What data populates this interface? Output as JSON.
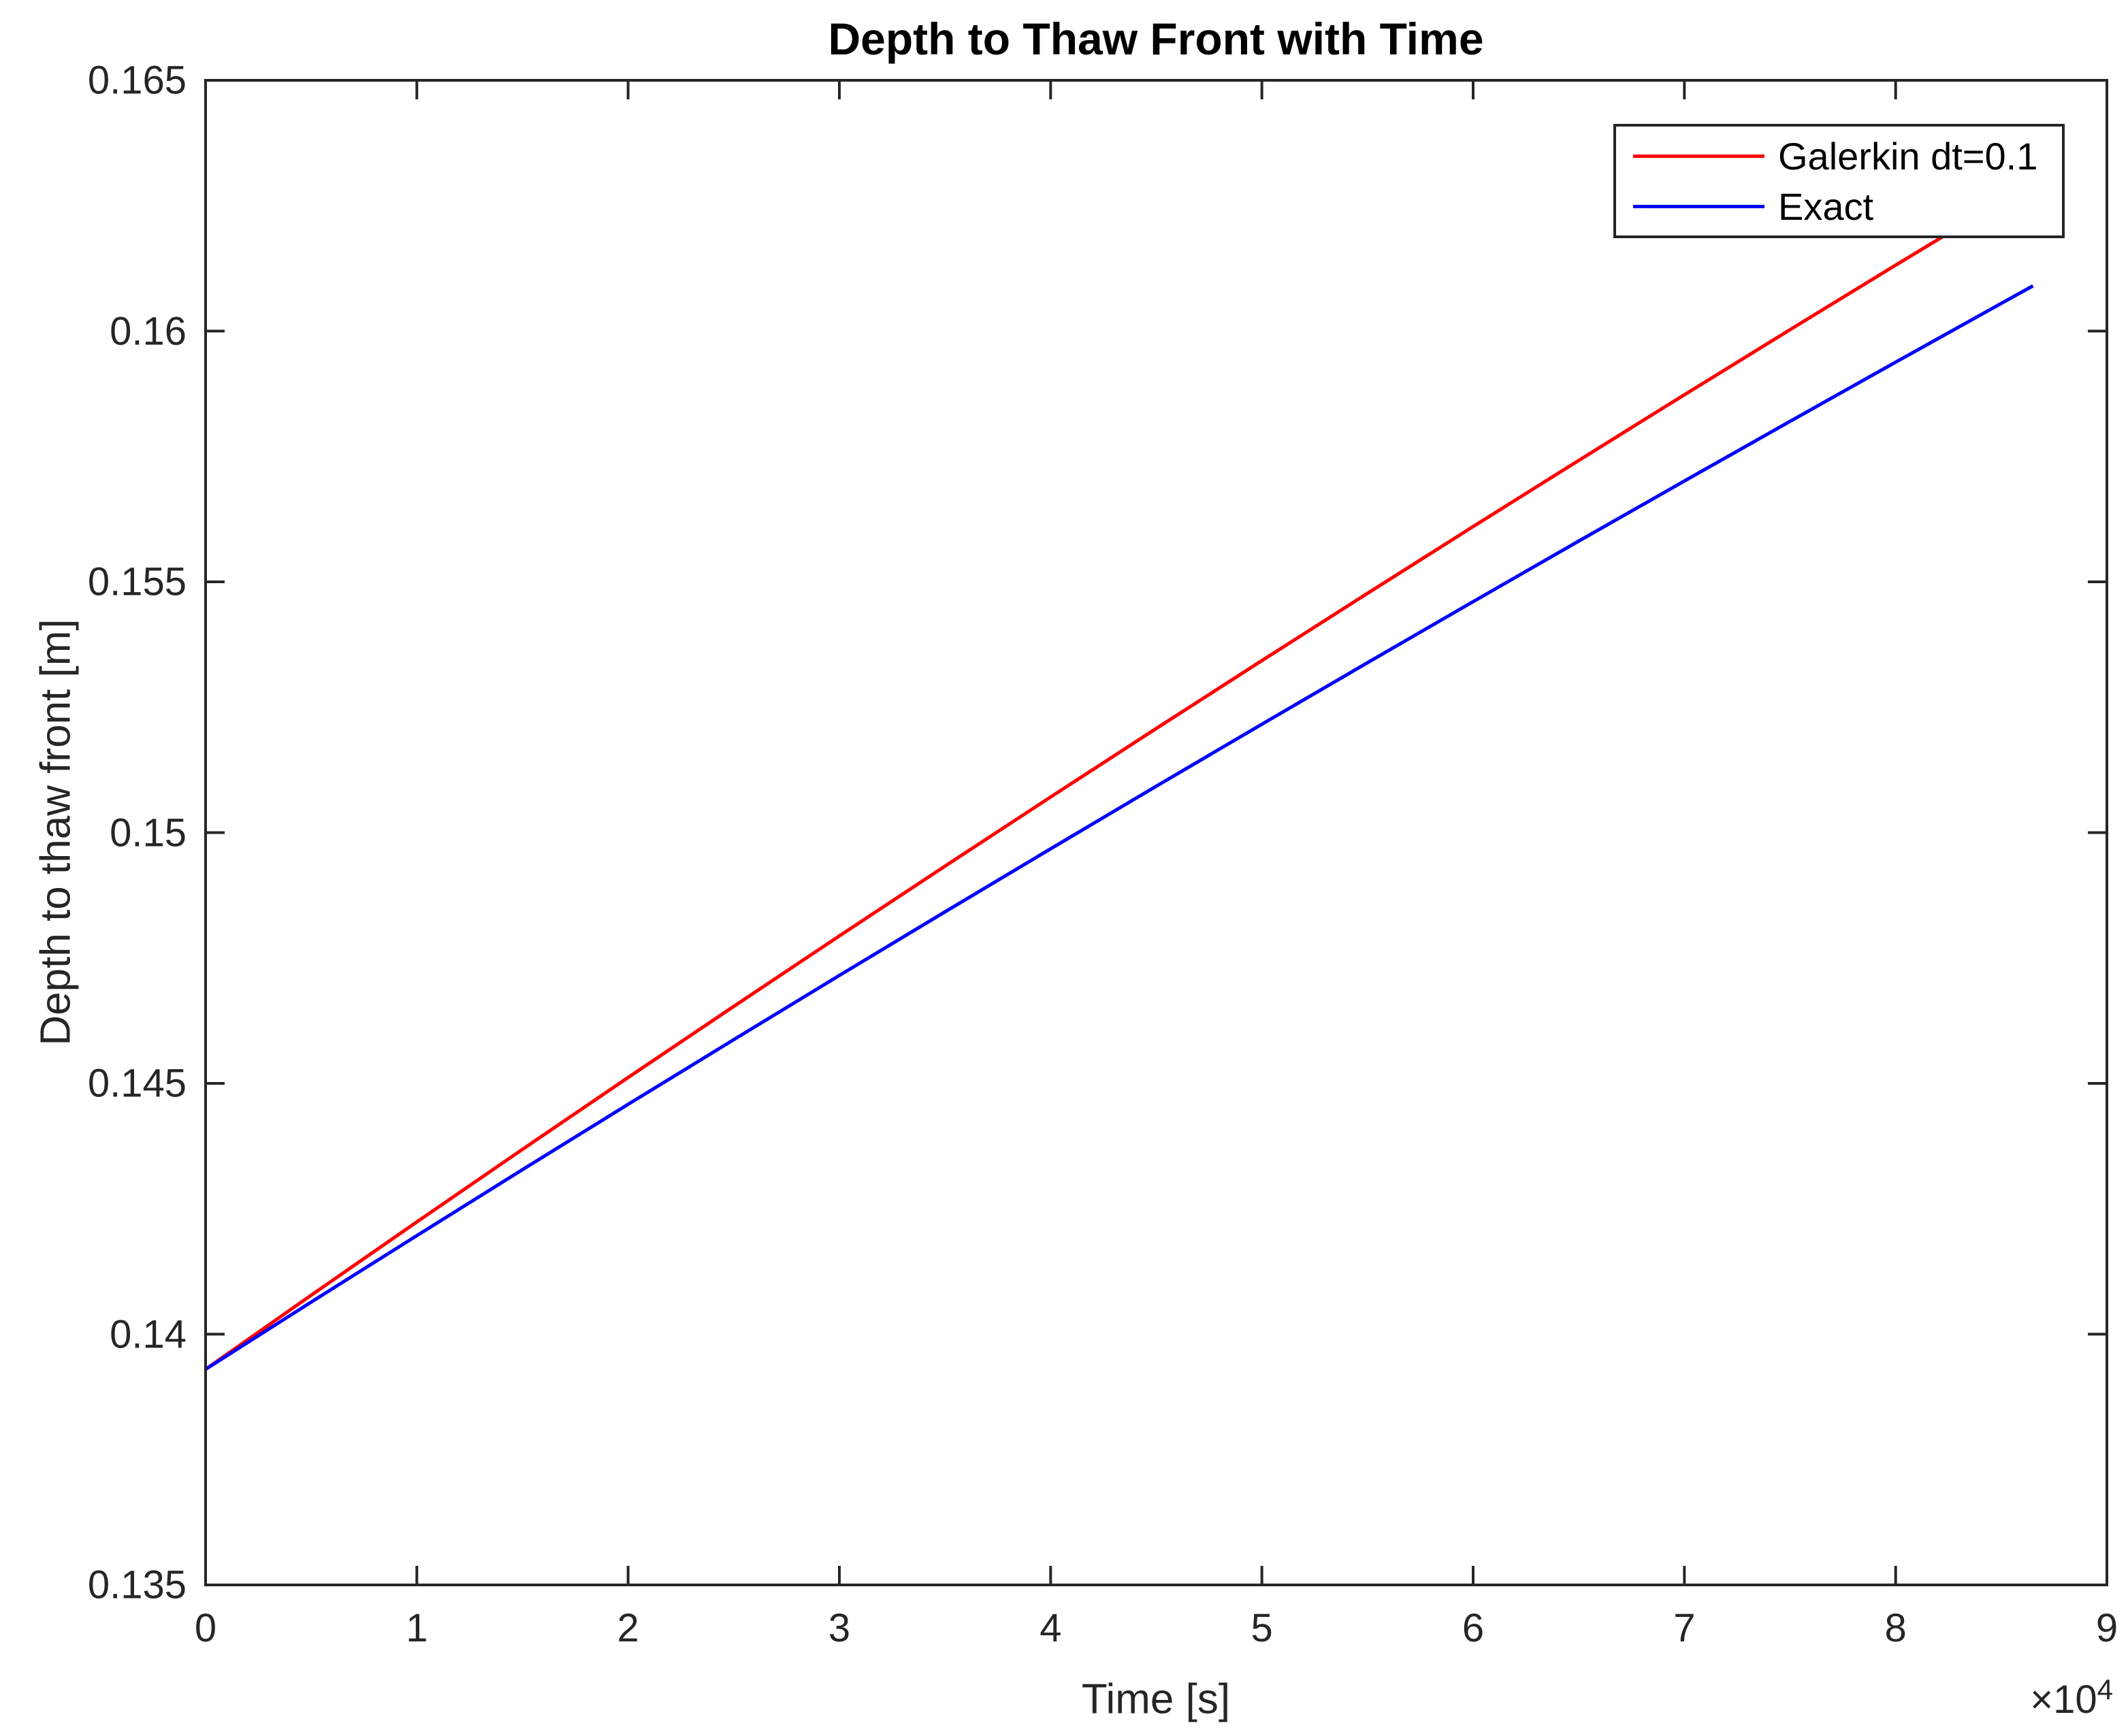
{
  "chart_data": {
    "type": "line",
    "title": "Depth to Thaw Front with Time",
    "xlabel": "Time [s]",
    "ylabel": "Depth to thaw front [m]",
    "xlim": [
      0,
      90000
    ],
    "ylim": [
      0.135,
      0.165
    ],
    "grid": false,
    "legend_position": "top-right",
    "axis_color": "#262626",
    "background_color": "#ffffff",
    "x_ticks": {
      "values": [
        0,
        10000,
        20000,
        30000,
        40000,
        50000,
        60000,
        70000,
        80000,
        90000
      ],
      "labels": [
        "0",
        "1",
        "2",
        "3",
        "4",
        "5",
        "6",
        "7",
        "8",
        "9"
      ]
    },
    "x_multiplier": {
      "base": "×10",
      "exponent": "4"
    },
    "y_ticks": {
      "values": [
        0.135,
        0.14,
        0.145,
        0.15,
        0.155,
        0.16,
        0.165
      ],
      "labels": [
        "0.135",
        "0.14",
        "0.145",
        "0.15",
        "0.155",
        "0.16",
        "0.165"
      ]
    },
    "series": [
      {
        "name": "Galerkin dt=0.1",
        "color": "#FF0000",
        "points": [
          [
            0,
            0.1393
          ],
          [
            5000,
            0.140777
          ],
          [
            10000,
            0.142238
          ],
          [
            15000,
            0.143685
          ],
          [
            20000,
            0.145117
          ],
          [
            25000,
            0.146535
          ],
          [
            30000,
            0.14794
          ],
          [
            35000,
            0.149331
          ],
          [
            40000,
            0.15071
          ],
          [
            45000,
            0.152076
          ],
          [
            50000,
            0.153429
          ],
          [
            55000,
            0.154771
          ],
          [
            60000,
            0.156102
          ],
          [
            65000,
            0.157421
          ],
          [
            70000,
            0.15873
          ],
          [
            75000,
            0.160027
          ],
          [
            80000,
            0.161314
          ],
          [
            85000,
            0.16259
          ],
          [
            86500,
            0.162971
          ]
        ]
      },
      {
        "name": "Exact",
        "color": "#0000FF",
        "points": [
          [
            0,
            0.1393
          ],
          [
            5000,
            0.14064
          ],
          [
            10000,
            0.141965
          ],
          [
            15000,
            0.14328
          ],
          [
            20000,
            0.144582
          ],
          [
            25000,
            0.145872
          ],
          [
            30000,
            0.147152
          ],
          [
            35000,
            0.14842
          ],
          [
            40000,
            0.149677
          ],
          [
            45000,
            0.150925
          ],
          [
            50000,
            0.152161
          ],
          [
            55000,
            0.153388
          ],
          [
            60000,
            0.154605
          ],
          [
            65000,
            0.155813
          ],
          [
            70000,
            0.157011
          ],
          [
            75000,
            0.1582
          ],
          [
            80000,
            0.15938
          ],
          [
            85000,
            0.160552
          ],
          [
            86500,
            0.160902
          ]
        ]
      }
    ]
  }
}
